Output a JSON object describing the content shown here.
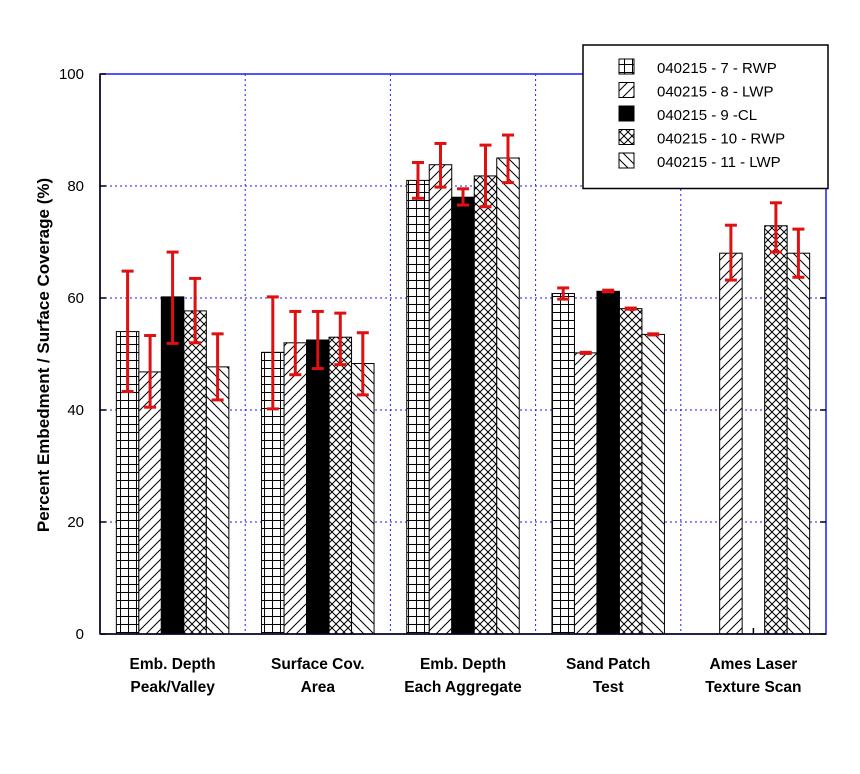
{
  "chart_data": {
    "type": "bar",
    "ylabel": "Percent Embedment / Surface Coverage (%)",
    "xlabel": "",
    "ylim": [
      0,
      100
    ],
    "yticks": [
      0,
      20,
      40,
      60,
      80,
      100
    ],
    "grid": true,
    "legend_position": "top-right",
    "categories": [
      [
        "Emb. Depth",
        "Peak/Valley"
      ],
      [
        "Surface Cov.",
        "Area"
      ],
      [
        "Emb. Depth",
        "Each Aggregate"
      ],
      [
        "Sand Patch",
        "Test"
      ],
      [
        "Ames Laser",
        "Texture Scan"
      ]
    ],
    "series": [
      {
        "name": "040215 - 7 - RWP",
        "pattern": "grid",
        "values": [
          54,
          50.3,
          81,
          60.8,
          null
        ],
        "error_low": [
          43.3,
          40.2,
          77.8,
          59.8,
          null
        ],
        "error_high": [
          64.8,
          60.2,
          84.2,
          61.8,
          null
        ]
      },
      {
        "name": "040215 - 8 - LWP",
        "pattern": "diagonal-up",
        "values": [
          46.8,
          52,
          83.8,
          50.2,
          68
        ],
        "error_low": [
          40.5,
          46.3,
          79.8,
          50.1,
          63.2
        ],
        "error_high": [
          53.3,
          57.6,
          87.6,
          50.3,
          73
        ]
      },
      {
        "name": "040215 - 9 -CL",
        "pattern": "solid",
        "values": [
          60.2,
          52.5,
          78,
          61.2,
          null
        ],
        "error_low": [
          51.9,
          47.4,
          76.6,
          61.1,
          null
        ],
        "error_high": [
          68.2,
          57.6,
          79.5,
          61.4,
          null
        ]
      },
      {
        "name": "040215 - 10 - RWP",
        "pattern": "crosshatch",
        "values": [
          57.7,
          53,
          81.8,
          58.1,
          72.9
        ],
        "error_low": [
          52,
          48.1,
          76.3,
          58,
          68.2
        ],
        "error_high": [
          63.5,
          57.3,
          87.3,
          58.2,
          77
        ]
      },
      {
        "name": "040215 - 11 - LWP",
        "pattern": "diagonal-down",
        "values": [
          47.7,
          48.3,
          85,
          53.5,
          68
        ],
        "error_low": [
          41.8,
          42.7,
          80.6,
          53.4,
          63.7
        ],
        "error_high": [
          53.6,
          53.8,
          89.1,
          53.6,
          72.3
        ]
      }
    ],
    "colors": {
      "grid": "#1a1aff",
      "error_bar": "#dd1111",
      "bar_stroke": "#000000",
      "bar_fill": "#ffffff"
    }
  }
}
